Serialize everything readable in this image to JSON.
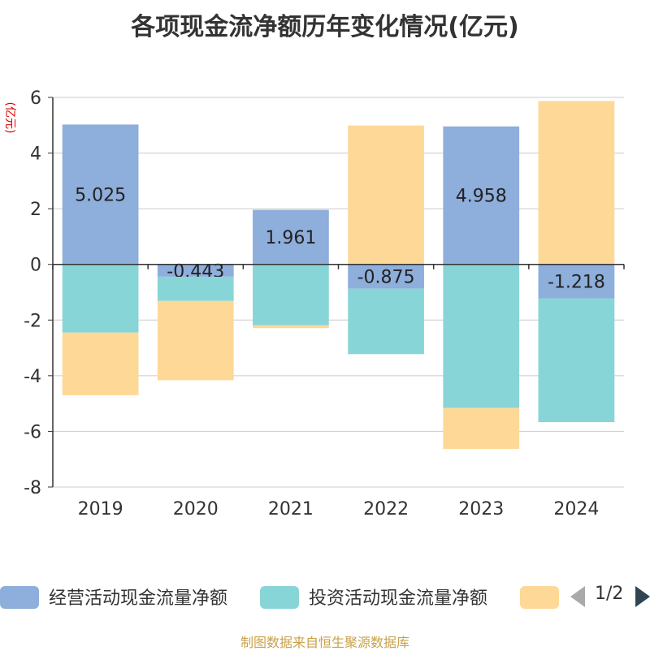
{
  "title": "各项现金流净额历年变化情况(亿元)",
  "source": "制图数据来自恒生聚源数据库",
  "chart_data": {
    "type": "bar",
    "stacked": true,
    "title": "各项现金流净额历年变化情况(亿元)",
    "ylabel": "(亿元)",
    "xlabel": "",
    "categories": [
      "2019",
      "2020",
      "2021",
      "2022",
      "2023",
      "2024"
    ],
    "ylim": [
      -8,
      6
    ],
    "yticks": [
      "6",
      "4",
      "2",
      "0",
      "-2",
      "-4",
      "-6",
      "-8"
    ],
    "grid": true,
    "legend_position": "bottom",
    "series": [
      {
        "name": "经营活动现金流量净额",
        "color": "#8eaedb",
        "values": [
          5.025,
          -0.443,
          1.961,
          -0.875,
          4.958,
          -1.218
        ],
        "labels": [
          "5.025",
          "-0.443",
          "1.961",
          "-0.875",
          "4.958",
          "-1.218"
        ]
      },
      {
        "name": "投资活动现金流量净额",
        "color": "#88d5d8",
        "values": [
          -2.45,
          -0.87,
          -2.19,
          -2.35,
          -5.16,
          -4.45
        ]
      },
      {
        "name": "",
        "color": "#fed897",
        "values": [
          -2.25,
          -2.85,
          -0.1,
          4.99,
          -1.47,
          5.87
        ]
      }
    ],
    "legend": {
      "page": "1/2"
    }
  }
}
